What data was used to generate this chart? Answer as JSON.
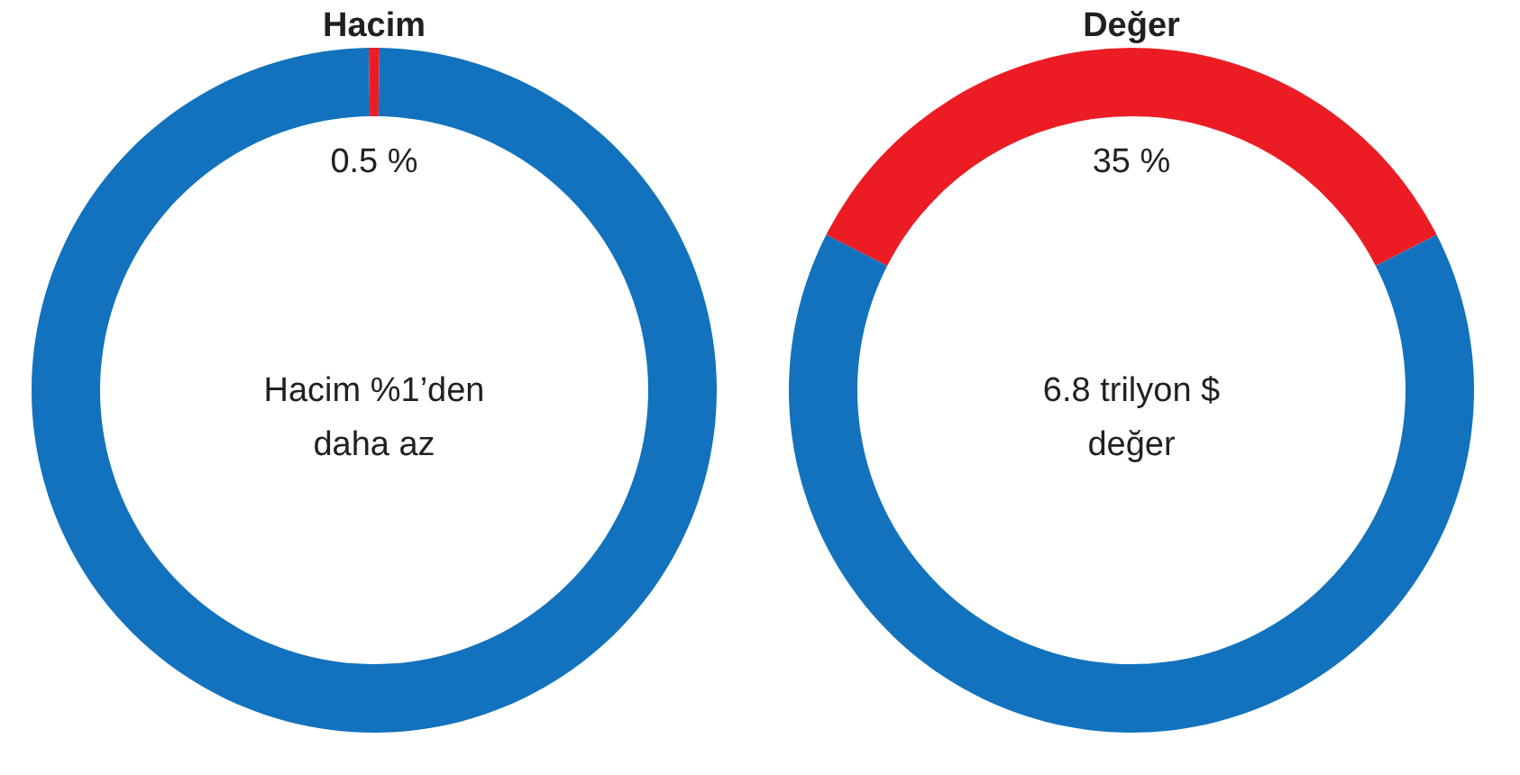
{
  "chart_data": [
    {
      "type": "donut",
      "title": "Hacim",
      "categories": [
        null,
        null
      ],
      "values": [
        0.5,
        99.5
      ],
      "colors": [
        "#ec1c24",
        "#1272bd"
      ],
      "value_labels": [
        "0.5 %",
        null
      ],
      "annotations": [
        "Hacim %1’den\ndaha az"
      ],
      "legend": false
    },
    {
      "type": "donut",
      "title": "Değer",
      "categories": [
        null,
        null
      ],
      "values": [
        35,
        65
      ],
      "colors": [
        "#ec1c24",
        "#1272bd"
      ],
      "value_labels": [
        "35 %",
        null
      ],
      "annotations": [
        "6.8 trilyon $\ndeğer"
      ],
      "legend": false
    }
  ]
}
